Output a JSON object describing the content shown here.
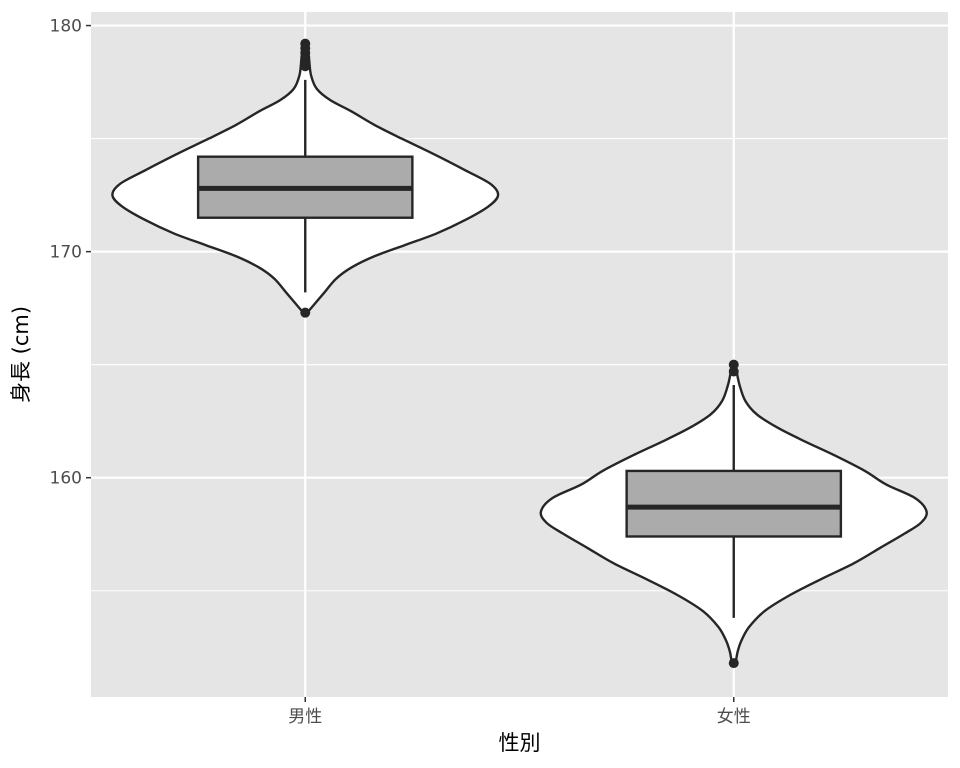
{
  "chart_data": {
    "type": "violin",
    "title": "",
    "xlabel": "性別",
    "ylabel": "身長 (cm)",
    "categories": [
      "男性",
      "女性"
    ],
    "ylim": [
      150.3,
      180.6
    ],
    "y_ticks": [
      160,
      170,
      180
    ],
    "y_minor_ticks": [
      155,
      165,
      175
    ],
    "grid": true,
    "colors": {
      "panel_background": "#e5e5e5",
      "grid_line": "#ffffff",
      "violin_fill": "#ffffff",
      "box_fill": "#ababab",
      "outline": "#262626"
    },
    "groups": [
      {
        "category": "男性",
        "box": {
          "q1": 171.5,
          "median": 172.8,
          "q3": 174.2,
          "whisker_low": 168.2,
          "whisker_high": 177.6
        },
        "outliers": [
          167.3,
          178.2,
          178.4,
          178.6,
          178.8,
          179.0,
          179.2
        ],
        "violin_min": 167.3,
        "violin_max": 179.2,
        "density_profile": [
          [
            167.3,
            0.01
          ],
          [
            167.7,
            0.05
          ],
          [
            168.2,
            0.1
          ],
          [
            168.8,
            0.16
          ],
          [
            169.3,
            0.24
          ],
          [
            169.8,
            0.36
          ],
          [
            170.3,
            0.52
          ],
          [
            170.8,
            0.68
          ],
          [
            171.4,
            0.83
          ],
          [
            172.0,
            0.95
          ],
          [
            172.5,
            1.0
          ],
          [
            173.0,
            0.96
          ],
          [
            173.6,
            0.83
          ],
          [
            174.3,
            0.67
          ],
          [
            175.0,
            0.5
          ],
          [
            175.6,
            0.36
          ],
          [
            176.2,
            0.24
          ],
          [
            176.7,
            0.13
          ],
          [
            177.2,
            0.06
          ],
          [
            177.8,
            0.03
          ],
          [
            178.5,
            0.02
          ],
          [
            179.2,
            0.01
          ]
        ]
      },
      {
        "category": "女性",
        "box": {
          "q1": 157.4,
          "median": 158.7,
          "q3": 160.3,
          "whisker_low": 153.8,
          "whisker_high": 164.1
        },
        "outliers": [
          151.8,
          164.7,
          165.0
        ],
        "violin_min": 151.8,
        "violin_max": 165.0,
        "density_profile": [
          [
            151.8,
            0.01
          ],
          [
            152.3,
            0.02
          ],
          [
            152.8,
            0.04
          ],
          [
            153.4,
            0.08
          ],
          [
            154.1,
            0.16
          ],
          [
            154.8,
            0.29
          ],
          [
            155.5,
            0.45
          ],
          [
            156.2,
            0.62
          ],
          [
            156.9,
            0.76
          ],
          [
            157.5,
            0.88
          ],
          [
            158.0,
            0.97
          ],
          [
            158.5,
            1.0
          ],
          [
            159.1,
            0.94
          ],
          [
            159.7,
            0.79
          ],
          [
            160.3,
            0.68
          ],
          [
            161.0,
            0.52
          ],
          [
            161.6,
            0.37
          ],
          [
            162.2,
            0.23
          ],
          [
            162.8,
            0.12
          ],
          [
            163.4,
            0.06
          ],
          [
            164.1,
            0.03
          ],
          [
            164.7,
            0.015
          ],
          [
            165.0,
            0.01
          ]
        ]
      }
    ]
  }
}
